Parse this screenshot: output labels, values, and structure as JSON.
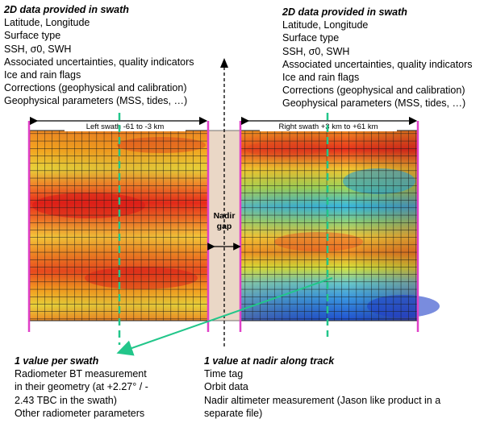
{
  "top_left": {
    "heading": "2D data provided in swath",
    "lines": [
      "Latitude, Longitude",
      "Surface type",
      "SSH, σ0, SWH",
      "Associated uncertainties, quality indicators",
      "Ice and rain flags",
      "Corrections (geophysical and calibration)",
      "Geophysical parameters (MSS, tides, …)"
    ]
  },
  "top_right": {
    "heading": "2D data provided in swath",
    "lines": [
      "Latitude, Longitude",
      "Surface type",
      "SSH, σ0, SWH",
      "Associated uncertainties, quality indicators",
      "Ice and rain flags",
      "Corrections (geophysical and calibration)",
      "Geophysical parameters (MSS, tides, …)"
    ]
  },
  "left_swath_label": "Left swath -61 to -3 km",
  "right_swath_label": "Right swath +3 km to +61 km",
  "nadir_gap": {
    "line1": "Nadir",
    "line2": "gap"
  },
  "bottom_left": {
    "heading": "1 value per swath",
    "lines": [
      "Radiometer BT measurement",
      "in their geometry (at +2.27° / -",
      "2.43 TBC in the swath)",
      "Other radiometer parameters"
    ]
  },
  "bottom_right": {
    "heading": "1 value at nadir along track",
    "lines": [
      "Time tag",
      "Orbit data",
      "Nadir altimeter measurement (Jason like product in a",
      "separate file)"
    ]
  },
  "colors": {
    "pink_edge": "#e040c8",
    "radiometer_line": "#22c68a",
    "nadir_gap_fill": "#ead7c6",
    "arrow": "#000000"
  }
}
